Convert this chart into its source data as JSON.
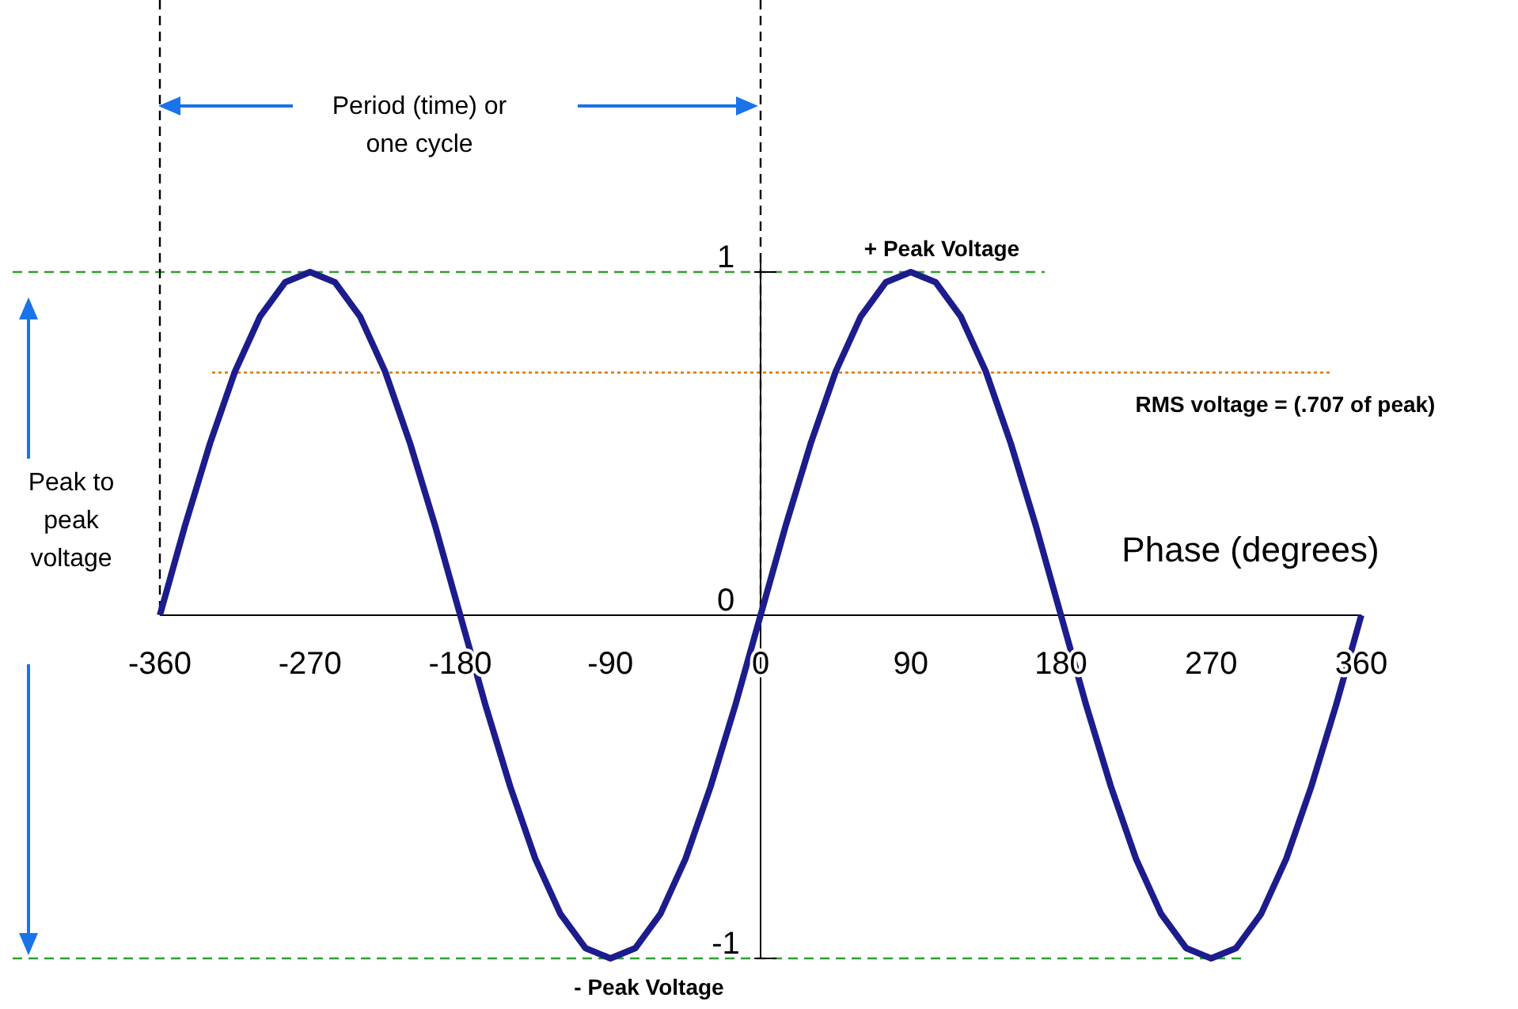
{
  "chart_data": {
    "type": "line",
    "xlabel": "Phase (degrees)",
    "x": [
      -360,
      -345,
      -330,
      -315,
      -300,
      -285,
      -270,
      -255,
      -240,
      -225,
      -210,
      -195,
      -180,
      -165,
      -150,
      -135,
      -120,
      -105,
      -90,
      -75,
      -60,
      -45,
      -30,
      -15,
      0,
      15,
      30,
      45,
      60,
      75,
      90,
      105,
      120,
      135,
      150,
      165,
      180,
      195,
      210,
      225,
      240,
      255,
      270,
      285,
      300,
      315,
      330,
      345,
      360
    ],
    "series": [
      {
        "color": "#1c1c8c",
        "values": [
          0,
          0.26,
          0.5,
          0.71,
          0.87,
          0.97,
          1,
          0.97,
          0.87,
          0.71,
          0.5,
          0.26,
          0,
          -0.26,
          -0.5,
          -0.71,
          -0.87,
          -0.97,
          -1,
          -0.97,
          -0.87,
          -0.71,
          -0.5,
          -0.26,
          0,
          0.26,
          0.5,
          0.71,
          0.87,
          0.97,
          1,
          0.97,
          0.87,
          0.71,
          0.5,
          0.26,
          0,
          -0.26,
          -0.5,
          -0.71,
          -0.87,
          -0.97,
          -1,
          -0.97,
          -0.87,
          -0.71,
          -0.5,
          -0.26,
          0
        ]
      }
    ],
    "xlim": [
      -360,
      360
    ],
    "xticks": [
      -360,
      -270,
      -180,
      -90,
      0,
      90,
      180,
      270,
      360
    ],
    "ylim": [
      -1,
      1
    ],
    "yticks": [
      -1,
      0,
      1
    ],
    "ref_lines": [
      {
        "axis": "y",
        "value": 1,
        "label": "+ Peak Voltage",
        "color": "#2ca02c",
        "line_style": "dashed"
      },
      {
        "axis": "y",
        "value": -1,
        "label": "- Peak Voltage",
        "color": "#2ca02c",
        "line_style": "dashed"
      },
      {
        "axis": "y",
        "value": 0.707,
        "label": "RMS voltage = (.707 of peak)",
        "color": "#e07b00",
        "line_style": "dotted"
      },
      {
        "axis": "x",
        "value": -360,
        "color": "#000000",
        "line_style": "dashed"
      },
      {
        "axis": "x",
        "value": 0,
        "color": "#000000",
        "line_style": "dashed"
      }
    ],
    "annotations": [
      "Period (time) or one cycle",
      "Peak to peak voltage"
    ],
    "grid": false
  }
}
